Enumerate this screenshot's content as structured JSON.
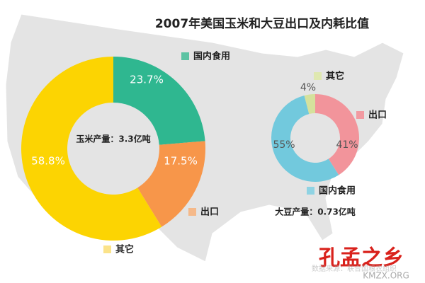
{
  "title": "2007年美国玉米和大豆出口及内耗比值",
  "chart_data": [
    {
      "type": "pie",
      "donut": true,
      "center_label": "玉米产量：3.3亿吨",
      "categories": [
        "国内食用",
        "出口",
        "其它"
      ],
      "values": [
        23.7,
        17.5,
        58.8
      ],
      "value_labels": [
        "23.7%",
        "17.5%",
        "58.8%"
      ],
      "colors": [
        "#2fb790",
        "#f7964a",
        "#fcd402"
      ],
      "legend_colors": [
        "#5cc3a3",
        "#f5b98a",
        "#fbe38a"
      ]
    },
    {
      "type": "pie",
      "donut": true,
      "center_label": "大豆产量：0.73亿吨",
      "categories": [
        "出口",
        "国内食用",
        "其它"
      ],
      "values": [
        41,
        55,
        4
      ],
      "value_labels": [
        "41%",
        "55%",
        "4%"
      ],
      "colors": [
        "#f2949b",
        "#72c9dd",
        "#d5e19c"
      ],
      "legend_colors": [
        "#f29aa1",
        "#8fd3e3",
        "#dfe8b0"
      ]
    }
  ],
  "watermark": [
    "孔孟之乡",
    "KMZX.ORG",
    "数据来源：联合国粮农组织"
  ]
}
